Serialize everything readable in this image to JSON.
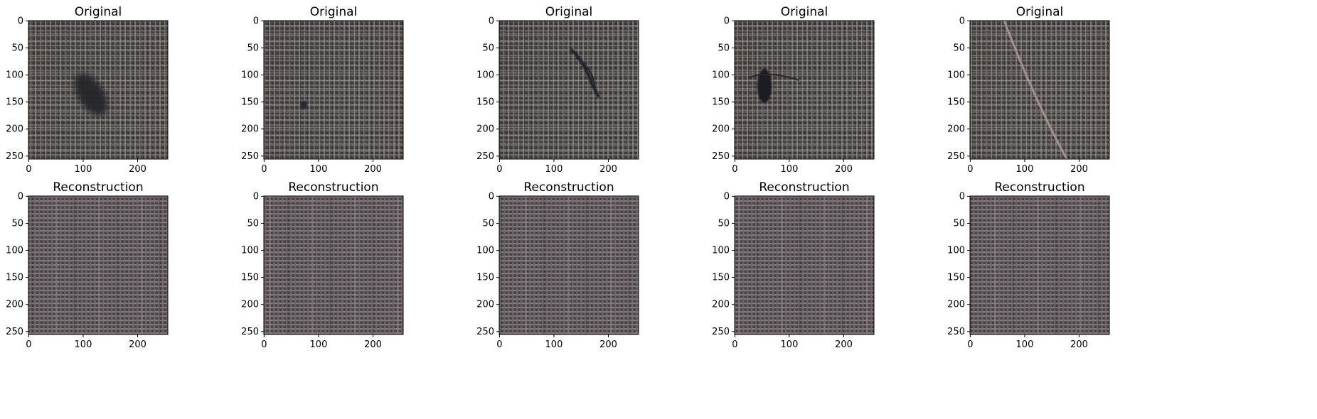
{
  "figure": {
    "row_titles": [
      "Original",
      "Reconstruction"
    ],
    "columns": 5,
    "axes": {
      "x_ticks": [
        "0",
        "100",
        "200"
      ],
      "y_ticks": [
        "0",
        "50",
        "100",
        "150",
        "200",
        "250"
      ]
    },
    "originals": [
      {
        "defect": "dark-stain",
        "description_color": "#2b2a32"
      },
      {
        "defect": "small-dark-spot",
        "description_color": "#2e2c36"
      },
      {
        "defect": "torn-crease",
        "description_color": "#1f1e22"
      },
      {
        "defect": "hole-tear",
        "description_color": "#1c1b20"
      },
      {
        "defect": "diagonal-thread",
        "description_color": "#9a8a8a"
      }
    ],
    "colors": {
      "fabric_dark": "#3b3939",
      "fabric_light": "#a9a49e",
      "recon_base": "#5a5256",
      "recon_stripe": "#8c8488"
    }
  }
}
